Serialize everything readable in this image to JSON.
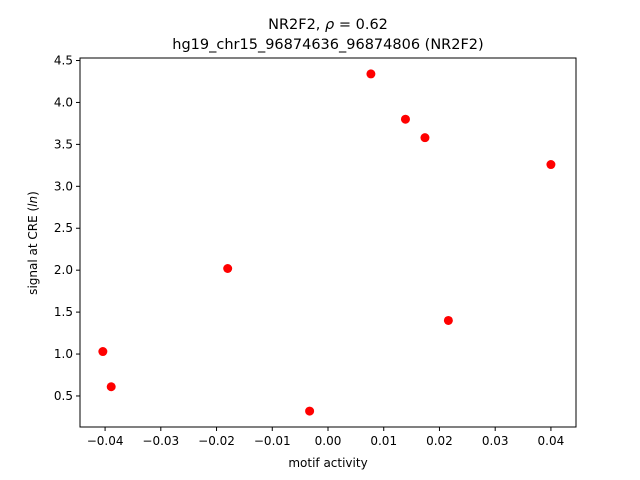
{
  "chart_data": {
    "type": "scatter",
    "title_line1_prefix": "NR2F2, ",
    "title_line1_rho": "ρ",
    "title_line1_suffix": " = 0.62",
    "title_line2": "hg19_chr15_96874636_96874806 (NR2F2)",
    "xlabel": "motif activity",
    "ylabel_prefix": "signal at CRE (",
    "ylabel_italic": "ln",
    "ylabel_suffix": ")",
    "xlim": [
      -0.0445,
      0.0445
    ],
    "ylim": [
      0.13,
      4.53
    ],
    "xticks": [
      -0.04,
      -0.03,
      -0.02,
      -0.01,
      0.0,
      0.01,
      0.02,
      0.03,
      0.04
    ],
    "xtick_labels": [
      "−0.04",
      "−0.03",
      "−0.02",
      "−0.01",
      "0.00",
      "0.01",
      "0.02",
      "0.03",
      "0.04"
    ],
    "yticks": [
      0.5,
      1.0,
      1.5,
      2.0,
      2.5,
      3.0,
      3.5,
      4.0,
      4.5
    ],
    "ytick_labels": [
      "0.5",
      "1.0",
      "1.5",
      "2.0",
      "2.5",
      "3.0",
      "3.5",
      "4.0",
      "4.5"
    ],
    "grid": false,
    "marker_color": "#ff0000",
    "points": [
      {
        "x": -0.0404,
        "y": 1.03
      },
      {
        "x": -0.0389,
        "y": 0.61
      },
      {
        "x": -0.018,
        "y": 2.02
      },
      {
        "x": -0.0033,
        "y": 0.32
      },
      {
        "x": 0.0077,
        "y": 4.34
      },
      {
        "x": 0.0139,
        "y": 3.8
      },
      {
        "x": 0.0174,
        "y": 3.58
      },
      {
        "x": 0.0216,
        "y": 1.4
      },
      {
        "x": 0.04,
        "y": 3.26
      }
    ]
  }
}
